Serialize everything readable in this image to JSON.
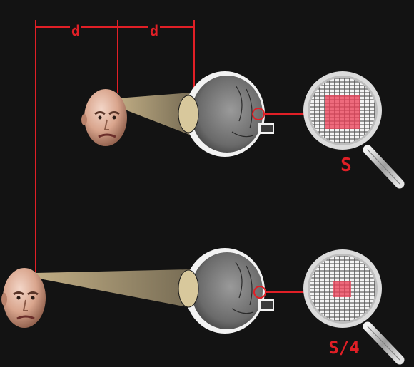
{
  "dimensions": {
    "distance_label_1": "d",
    "distance_label_2": "d"
  },
  "images": {
    "near": {
      "retina_image_size_label": "S"
    },
    "far": {
      "retina_image_size_label": "S/4"
    }
  },
  "colors": {
    "background": "#131313",
    "annotation_red": "#e01f26",
    "light_cone": "#c9b58a",
    "retina_patch": "#e8566e",
    "sensor_grid": "#f4f4f4"
  }
}
